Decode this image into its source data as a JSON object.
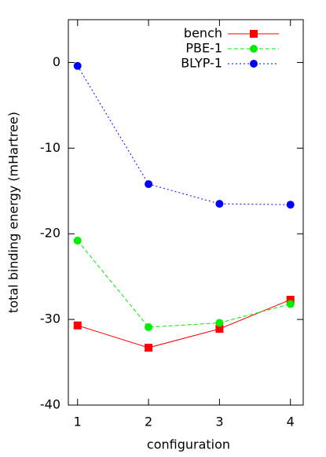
{
  "chart_data": {
    "type": "line",
    "x_label": "configuration",
    "y_label": "total binding energy (mHartree)",
    "x": [
      1,
      2,
      3,
      4
    ],
    "series": [
      {
        "name": "bench",
        "color": "#ff0000",
        "dash": "solid",
        "marker": "square",
        "values": [
          -30.7,
          -33.3,
          -31.1,
          -27.7
        ]
      },
      {
        "name": "PBE-1",
        "color": "#00ee00",
        "dash": "dashed",
        "marker": "circle",
        "values": [
          -20.8,
          -30.9,
          -30.4,
          -28.2
        ]
      },
      {
        "name": "BLYP-1",
        "color": "#0000ff",
        "dash": "dotted",
        "marker": "circle",
        "values": [
          -0.4,
          -14.2,
          -16.5,
          -16.6
        ]
      }
    ],
    "xlim": [
      0.87,
      4.18
    ],
    "ylim": [
      -40,
      5
    ],
    "xticks": [
      1,
      2,
      3,
      4
    ],
    "yticks": [
      -40,
      -30,
      -20,
      -10,
      0
    ],
    "legend": "top-right"
  }
}
